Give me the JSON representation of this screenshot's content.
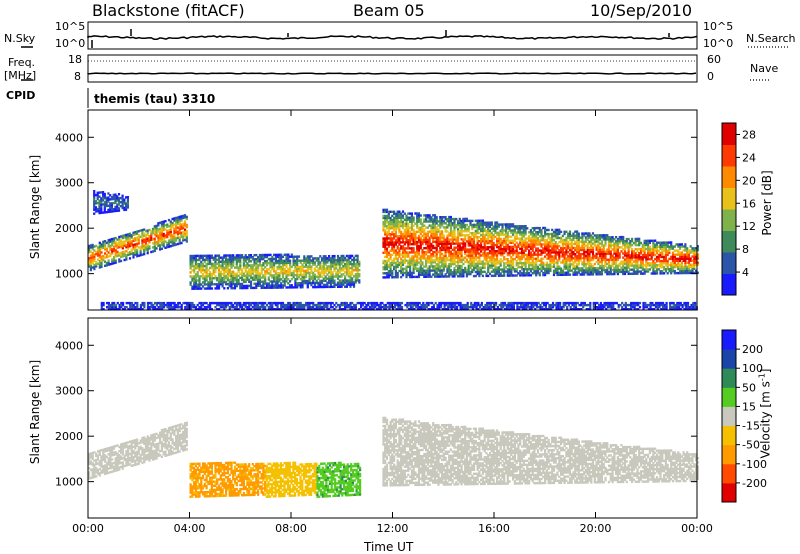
{
  "header": {
    "station": "Blackstone (fitACF)",
    "beam": "Beam 05",
    "date": "10/Sep/2010"
  },
  "strips": {
    "nsky_label": "N.Sky",
    "nsearch_label": "N.Search",
    "nsky_ticks": [
      "10^5",
      "10^0"
    ],
    "nsearch_ticks": [
      "10^5",
      "10^0"
    ],
    "freq_label_1": "Freq.",
    "freq_label_2": "[MHz]",
    "freq_ticks": [
      "18",
      "8"
    ],
    "nave_label": "Nave",
    "nave_ticks": [
      "60",
      "0"
    ],
    "cpid_label": "CPID",
    "cpid_value": "themis (tau) 3310"
  },
  "colors": {
    "power": [
      "#1a1aff",
      "#2b55a8",
      "#3f8a5a",
      "#7fb24a",
      "#e8c21a",
      "#ff8a00",
      "#ff3a00",
      "#e00000"
    ],
    "velocity": [
      "#e00000",
      "#ff4a00",
      "#ff9a00",
      "#f5c000",
      "#c8c8bc",
      "#55cc22",
      "#2e8b57",
      "#1a44a8",
      "#1a1aff"
    ],
    "ground_scatter": "#c8c8bc"
  },
  "chart_data": [
    {
      "type": "heatmap",
      "title": "Power",
      "xlabel": "Time UT",
      "ylabel": "Slant Range [km]",
      "xticks": [
        "00:00",
        "04:00",
        "08:00",
        "12:00",
        "16:00",
        "20:00",
        "00:00"
      ],
      "yticks": [
        "1000",
        "2000",
        "3000",
        "4000"
      ],
      "ylim": [
        200,
        4600
      ],
      "colorbar_label": "Power [dB]",
      "colorbar_ticks": [
        "28",
        "24",
        "20",
        "16",
        "12",
        "8",
        "4"
      ],
      "colorbar_range": [
        0,
        30
      ],
      "features": [
        {
          "t": [
            0.0,
            3.9
          ],
          "r_low": [
            1050,
            1700
          ],
          "r_high": [
            1600,
            2300
          ],
          "peak_db": 26
        },
        {
          "t": [
            0.2,
            1.6
          ],
          "r_low": [
            2300,
            2400
          ],
          "r_high": [
            2800,
            2700
          ],
          "peak_db": 8
        },
        {
          "t": [
            4.0,
            10.7
          ],
          "r_low": [
            650,
            700
          ],
          "r_high": [
            1400,
            1400
          ],
          "peak_db": 18
        },
        {
          "t": [
            11.6,
            24.0
          ],
          "r_low": [
            900,
            1000
          ],
          "r_high": [
            2400,
            1600
          ],
          "peak_db": 28
        },
        {
          "t": [
            0.5,
            24.0
          ],
          "r_low": [
            200,
            200
          ],
          "r_high": [
            350,
            350
          ],
          "peak_db": 6
        }
      ]
    },
    {
      "type": "heatmap",
      "title": "Velocity",
      "xlabel": "Time UT",
      "ylabel": "Slant Range [km]",
      "xticks": [
        "00:00",
        "04:00",
        "08:00",
        "12:00",
        "16:00",
        "20:00",
        "00:00"
      ],
      "yticks": [
        "1000",
        "2000",
        "3000",
        "4000"
      ],
      "ylim": [
        200,
        4600
      ],
      "colorbar_label": "Velocity [m s^-1]",
      "colorbar_ticks": [
        "200",
        "100",
        "50",
        "15",
        "-15",
        "-50",
        "-100",
        "-200"
      ],
      "colorbar_range": [
        -250,
        250
      ],
      "features": [
        {
          "t": [
            0.0,
            3.9
          ],
          "r_low": [
            1050,
            1700
          ],
          "r_high": [
            1600,
            2300
          ],
          "vel": 0
        },
        {
          "t": [
            4.0,
            7.0
          ],
          "r_low": [
            650,
            700
          ],
          "r_high": [
            1400,
            1400
          ],
          "vel": -60
        },
        {
          "t": [
            7.0,
            9.0
          ],
          "r_low": [
            650,
            700
          ],
          "r_high": [
            1400,
            1400
          ],
          "vel": -30
        },
        {
          "t": [
            9.0,
            10.7
          ],
          "r_low": [
            650,
            700
          ],
          "r_high": [
            1400,
            1400
          ],
          "vel": 40
        },
        {
          "t": [
            11.6,
            24.0
          ],
          "r_low": [
            900,
            1000
          ],
          "r_high": [
            2400,
            1600
          ],
          "vel": 0
        }
      ]
    }
  ]
}
